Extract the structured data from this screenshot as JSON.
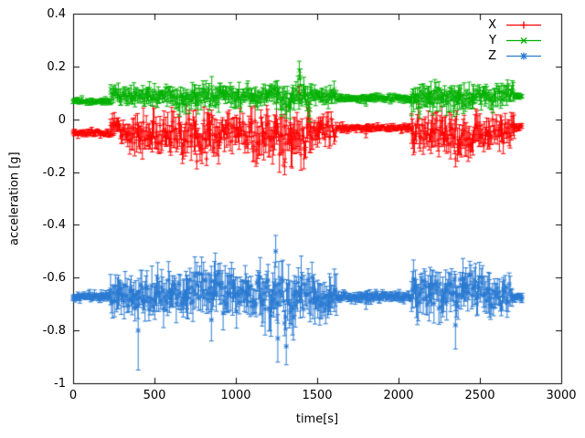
{
  "figure": {
    "background": "#ffffff",
    "text_color": "#000000",
    "axis_color": "#000000"
  },
  "chart_data": {
    "type": "scatter",
    "plot_style": "points-with-yerrorbars",
    "title": "",
    "xlabel": "time[s]",
    "ylabel": "acceleration [g]",
    "xlim": [
      0,
      3000
    ],
    "ylim": [
      -1,
      0.4
    ],
    "xticks": [
      0,
      500,
      1000,
      1500,
      2000,
      2500,
      3000
    ],
    "xtick_labels": [
      "0",
      "500",
      "1000",
      "1500",
      "2000",
      "2500",
      "3000"
    ],
    "yticks": [
      -1,
      -0.8,
      -0.6,
      -0.4,
      -0.2,
      0,
      0.2,
      0.4
    ],
    "ytick_labels": [
      "-1",
      "-0.8",
      "-0.6",
      "-0.4",
      "-0.2",
      "0",
      "0.2",
      "0.4"
    ],
    "grid": false,
    "legend_position": "top-right-inside",
    "time_range_s": [
      0,
      2760
    ],
    "sample_step_s": 6,
    "series": [
      {
        "name": "X",
        "color": "#ff0000",
        "marker": "plus",
        "baseline": -0.05,
        "segments": [
          {
            "t0": 0,
            "t1": 230,
            "base": -0.05,
            "noise": 0.006,
            "err": 0.01
          },
          {
            "t0": 230,
            "t1": 330,
            "base": -0.04,
            "noise": 0.018,
            "err": 0.03
          },
          {
            "t0": 330,
            "t1": 600,
            "base": -0.05,
            "noise": 0.028,
            "err": 0.045
          },
          {
            "t0": 600,
            "t1": 900,
            "base": -0.06,
            "noise": 0.035,
            "err": 0.055
          },
          {
            "t0": 900,
            "t1": 1100,
            "base": -0.05,
            "noise": 0.028,
            "err": 0.045
          },
          {
            "t0": 1100,
            "t1": 1460,
            "base": -0.065,
            "noise": 0.042,
            "err": 0.06
          },
          {
            "t0": 1460,
            "t1": 1620,
            "base": -0.04,
            "noise": 0.022,
            "err": 0.035
          },
          {
            "t0": 1620,
            "t1": 2080,
            "base": -0.032,
            "noise": 0.005,
            "err": 0.01
          },
          {
            "t0": 2080,
            "t1": 2320,
            "base": -0.05,
            "noise": 0.03,
            "err": 0.048
          },
          {
            "t0": 2320,
            "t1": 2500,
            "base": -0.062,
            "noise": 0.035,
            "err": 0.052
          },
          {
            "t0": 2500,
            "t1": 2710,
            "base": -0.045,
            "noise": 0.028,
            "err": 0.042
          },
          {
            "t0": 2710,
            "t1": 2760,
            "base": -0.03,
            "noise": 0.006,
            "err": 0.01
          }
        ],
        "spikes": [
          {
            "t": 1390,
            "v": 0.1,
            "err": 0.025
          },
          {
            "t": 1300,
            "v": -0.18,
            "err": 0.03
          },
          {
            "t": 760,
            "v": -0.16,
            "err": 0.028
          },
          {
            "t": 820,
            "v": -0.15,
            "err": 0.025
          },
          {
            "t": 1800,
            "v": -0.055,
            "err": 0.015
          },
          {
            "t": 2350,
            "v": -0.15,
            "err": 0.03
          }
        ]
      },
      {
        "name": "Y",
        "color": "#00b000",
        "marker": "times",
        "baseline": 0.08,
        "segments": [
          {
            "t0": 0,
            "t1": 230,
            "base": 0.068,
            "noise": 0.005,
            "err": 0.009
          },
          {
            "t0": 230,
            "t1": 600,
            "base": 0.09,
            "noise": 0.014,
            "err": 0.024
          },
          {
            "t0": 600,
            "t1": 900,
            "base": 0.085,
            "noise": 0.018,
            "err": 0.03
          },
          {
            "t0": 900,
            "t1": 1250,
            "base": 0.09,
            "noise": 0.016,
            "err": 0.026
          },
          {
            "t0": 1250,
            "t1": 1460,
            "base": 0.08,
            "noise": 0.024,
            "err": 0.036
          },
          {
            "t0": 1460,
            "t1": 1620,
            "base": 0.09,
            "noise": 0.014,
            "err": 0.024
          },
          {
            "t0": 1620,
            "t1": 2080,
            "base": 0.08,
            "noise": 0.005,
            "err": 0.01
          },
          {
            "t0": 2080,
            "t1": 2460,
            "base": 0.082,
            "noise": 0.02,
            "err": 0.034
          },
          {
            "t0": 2460,
            "t1": 2710,
            "base": 0.09,
            "noise": 0.018,
            "err": 0.028
          },
          {
            "t0": 2710,
            "t1": 2760,
            "base": 0.09,
            "noise": 0.006,
            "err": 0.01
          }
        ],
        "spikes": [
          {
            "t": 1390,
            "v": 0.185,
            "err": 0.035
          },
          {
            "t": 1396,
            "v": 0.16,
            "err": 0.03
          },
          {
            "t": 2130,
            "v": 0.025,
            "err": 0.02
          },
          {
            "t": 2340,
            "v": 0.03,
            "err": 0.02
          },
          {
            "t": 1800,
            "v": 0.062,
            "err": 0.012
          },
          {
            "t": 690,
            "v": 0.04,
            "err": 0.02
          }
        ]
      },
      {
        "name": "Z",
        "color": "#2a7ad2",
        "marker": "star",
        "baseline": -0.67,
        "segments": [
          {
            "t0": 0,
            "t1": 230,
            "base": -0.672,
            "noise": 0.007,
            "err": 0.013
          },
          {
            "t0": 230,
            "t1": 430,
            "base": -0.668,
            "noise": 0.028,
            "err": 0.05
          },
          {
            "t0": 430,
            "t1": 700,
            "base": -0.66,
            "noise": 0.034,
            "err": 0.058
          },
          {
            "t0": 700,
            "t1": 950,
            "base": -0.64,
            "noise": 0.04,
            "err": 0.062
          },
          {
            "t0": 950,
            "t1": 1150,
            "base": -0.66,
            "noise": 0.034,
            "err": 0.055
          },
          {
            "t0": 1150,
            "t1": 1360,
            "base": -0.68,
            "noise": 0.05,
            "err": 0.075
          },
          {
            "t0": 1360,
            "t1": 1620,
            "base": -0.668,
            "noise": 0.04,
            "err": 0.062
          },
          {
            "t0": 1620,
            "t1": 2080,
            "base": -0.674,
            "noise": 0.008,
            "err": 0.014
          },
          {
            "t0": 2080,
            "t1": 2360,
            "base": -0.66,
            "noise": 0.034,
            "err": 0.056
          },
          {
            "t0": 2360,
            "t1": 2560,
            "base": -0.648,
            "noise": 0.038,
            "err": 0.056
          },
          {
            "t0": 2560,
            "t1": 2700,
            "base": -0.668,
            "noise": 0.028,
            "err": 0.044
          },
          {
            "t0": 2700,
            "t1": 2760,
            "base": -0.67,
            "noise": 0.008,
            "err": 0.014
          }
        ],
        "spikes": [
          {
            "t": 400,
            "v": -0.8,
            "err": 0.15
          },
          {
            "t": 1245,
            "v": -0.5,
            "err": 0.06
          },
          {
            "t": 1258,
            "v": -0.83,
            "err": 0.09
          },
          {
            "t": 1310,
            "v": -0.86,
            "err": 0.07
          },
          {
            "t": 850,
            "v": -0.76,
            "err": 0.08
          },
          {
            "t": 2350,
            "v": -0.78,
            "err": 0.09
          },
          {
            "t": 1800,
            "v": -0.695,
            "err": 0.025
          }
        ]
      }
    ]
  }
}
